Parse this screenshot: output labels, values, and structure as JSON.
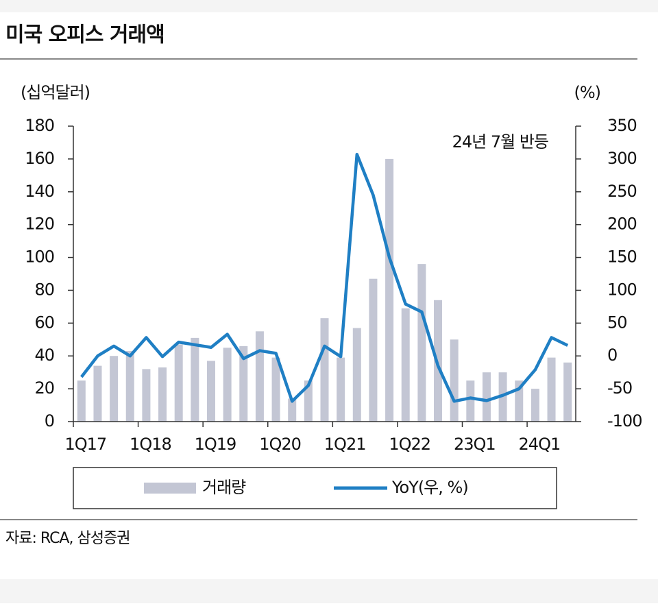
{
  "chart_data": {
    "type": "bar-line",
    "title": "미국 오피스 거래액",
    "y_label": "(십억달러)",
    "y2_label": "(%)",
    "annotation": "24년 7월 반등",
    "source": "자료: RCA, 삼성증권",
    "categories": [
      "1Q17",
      null,
      null,
      null,
      "1Q18",
      null,
      null,
      null,
      "1Q19",
      null,
      null,
      null,
      "1Q20",
      null,
      null,
      null,
      "1Q21",
      null,
      null,
      null,
      "1Q22",
      null,
      null,
      null,
      "23Q1",
      null,
      null,
      null,
      "24Q1",
      null,
      null
    ],
    "series": [
      {
        "name": "거래량",
        "type": "bar",
        "color": "#c3c6d4",
        "values": [
          25,
          34,
          40,
          43,
          32,
          33,
          47,
          51,
          37,
          45,
          46,
          55,
          39,
          14,
          25,
          63,
          39,
          57,
          87,
          160,
          69,
          96,
          74,
          50,
          25,
          30,
          30,
          25,
          20,
          39,
          36
        ]
      },
      {
        "name": "YoY(우, %)",
        "type": "line",
        "axis": "y2",
        "color": "#1f7fc4",
        "values": [
          -32,
          0,
          15,
          0,
          28,
          -1,
          21,
          17,
          13,
          33,
          -4,
          8,
          4,
          -69,
          -45,
          15,
          -1,
          307,
          245,
          150,
          79,
          67,
          -15,
          -69,
          -64,
          -68,
          -60,
          -50,
          -21,
          28,
          16
        ]
      }
    ],
    "ylim": [
      0,
      180
    ],
    "yticks": [
      0,
      20,
      40,
      60,
      80,
      100,
      120,
      140,
      160,
      180
    ],
    "y2lim": [
      -100,
      350
    ],
    "y2ticks": [
      -100,
      -50,
      0,
      50,
      100,
      150,
      200,
      250,
      300,
      350
    ]
  }
}
